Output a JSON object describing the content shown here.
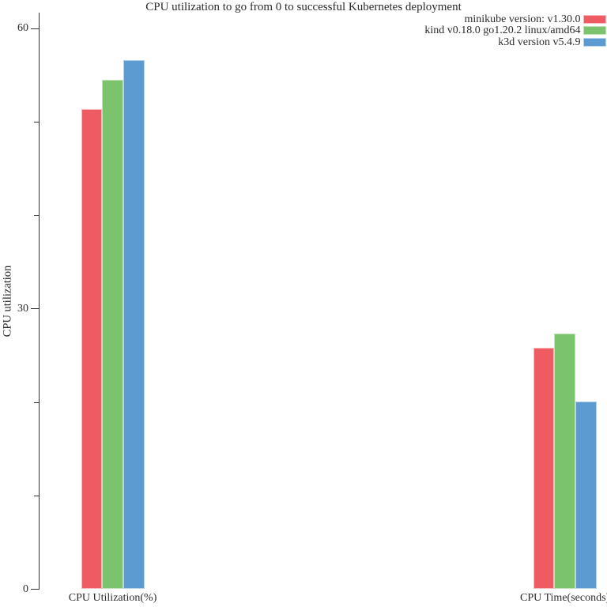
{
  "title": "CPU utilization to go from 0 to successful Kubernetes deployment",
  "colors": {
    "background": "#ffffff",
    "text": "#2b2b2b",
    "axis": "#333333"
  },
  "chart_data": {
    "type": "bar",
    "title": "CPU utilization to go from 0 to successful Kubernetes deployment",
    "xlabel": "",
    "ylabel": "CPU utilization",
    "categories": [
      "CPU Utilization(%)",
      "CPU Time(seconds)"
    ],
    "series": [
      {
        "name": "minikube version: v1.30.0",
        "color": "#ee5b63",
        "border": "#f8b9bd",
        "values": [
          51.4,
          25.8
        ]
      },
      {
        "name": "kind v0.18.0 go1.20.2 linux/amd64",
        "color": "#7cc36d",
        "border": "#c0e2b6",
        "values": [
          54.5,
          27.4
        ]
      },
      {
        "name": "k3d version v5.4.9",
        "color": "#5b9bd2",
        "border": "#b7d4ee",
        "values": [
          56.6,
          20.1
        ]
      }
    ],
    "ylim": [
      0,
      61.7
    ],
    "yticks_major": [
      0,
      30,
      60
    ],
    "ytick_labels": [
      "0",
      "30",
      "60"
    ],
    "yticks_minor": [
      10,
      20,
      40,
      50
    ],
    "grid": false,
    "legend_position": "top-right"
  }
}
